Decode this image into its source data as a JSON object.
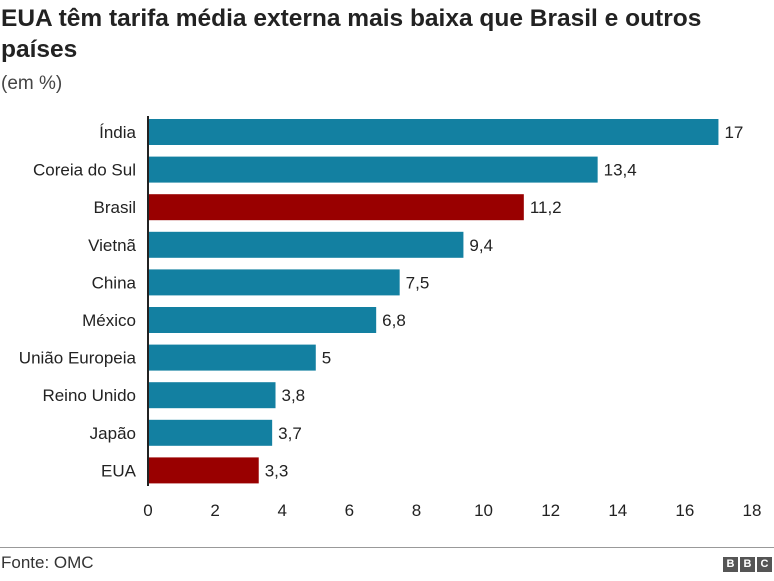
{
  "title": "EUA têm tarifa média externa mais baixa que Brasil e outros países",
  "subtitle": "(em %)",
  "source": "Fonte: OMC",
  "logo": "BBC",
  "colors": {
    "default": "#1380A1",
    "highlight": "#990000"
  },
  "chart_data": {
    "type": "bar",
    "orientation": "horizontal",
    "categories": [
      "Índia",
      "Coreia do Sul",
      "Brasil",
      "Vietnã",
      "China",
      "México",
      "União Europeia",
      "Reino Unido",
      "Japão",
      "EUA"
    ],
    "values": [
      17,
      13.4,
      11.2,
      9.4,
      7.5,
      6.8,
      5,
      3.8,
      3.7,
      3.3
    ],
    "value_labels": [
      "17",
      "13,4",
      "11,2",
      "9,4",
      "7,5",
      "6,8",
      "5",
      "3,8",
      "3,7",
      "3,3"
    ],
    "highlighted": [
      "Brasil",
      "EUA"
    ],
    "xlim": [
      0,
      18
    ],
    "xticks": [
      0,
      2,
      4,
      6,
      8,
      10,
      12,
      14,
      16,
      18
    ],
    "grid": false
  }
}
